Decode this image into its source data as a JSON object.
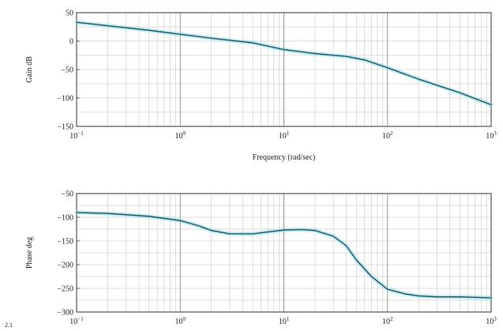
{
  "chart_data": [
    {
      "type": "line",
      "xscale": "log",
      "xlim": [
        0.1,
        1000
      ],
      "ylim": [
        -150,
        50
      ],
      "yticks": [
        50,
        0,
        -50,
        -100,
        -150
      ],
      "xticks": [
        0.1,
        1,
        10,
        100,
        1000
      ],
      "xtick_labels": [
        {
          "base": "10",
          "exp": "−1"
        },
        {
          "base": "10",
          "exp": "0"
        },
        {
          "base": "10",
          "exp": "1"
        },
        {
          "base": "10",
          "exp": "2"
        },
        {
          "base": "10",
          "exp": "3"
        }
      ],
      "ytick_labels": [
        "50",
        "0",
        "−50",
        "−100",
        "−150"
      ],
      "ylabel": "Gain dB",
      "xlabel": "Frequency (rad/sec)",
      "grid": true,
      "colors": {
        "band": "#7fd3e6",
        "line": "#1f4e5c"
      },
      "series": [
        {
          "x": [
            0.1,
            0.2,
            0.5,
            1,
            2,
            5,
            10,
            20,
            30,
            40,
            60,
            100,
            200,
            500,
            1000
          ],
          "y": [
            33,
            27,
            19,
            12,
            5,
            -3,
            -15,
            -22,
            -25,
            -27,
            -33,
            -47,
            -67,
            -91,
            -112
          ]
        }
      ]
    },
    {
      "type": "line",
      "xscale": "log",
      "xlim": [
        0.1,
        1000
      ],
      "ylim": [
        -300,
        -50
      ],
      "yticks": [
        -50,
        -100,
        -150,
        -200,
        -250,
        -300
      ],
      "xticks": [
        0.1,
        1,
        10,
        100,
        1000
      ],
      "xtick_labels": [
        {
          "base": "10",
          "exp": "−1"
        },
        {
          "base": "10",
          "exp": "0"
        },
        {
          "base": "10",
          "exp": "1"
        },
        {
          "base": "10",
          "exp": "2"
        },
        {
          "base": "10",
          "exp": "3"
        }
      ],
      "ytick_labels": [
        "−50",
        "−100",
        "−150",
        "−200",
        "−250",
        "−300"
      ],
      "ylabel": "Phase deg",
      "xlabel": "",
      "grid": true,
      "colors": {
        "band": "#7fd3e6",
        "line": "#1f4e5c"
      },
      "series": [
        {
          "x": [
            0.1,
            0.2,
            0.5,
            1,
            1.5,
            2,
            3,
            5,
            7,
            10,
            15,
            20,
            30,
            40,
            50,
            70,
            100,
            150,
            200,
            300,
            500,
            1000
          ],
          "y": [
            -90,
            -92,
            -98,
            -107,
            -118,
            -128,
            -135,
            -135,
            -131,
            -127,
            -126,
            -128,
            -140,
            -160,
            -190,
            -225,
            -252,
            -262,
            -266,
            -268,
            -268,
            -270
          ]
        }
      ]
    }
  ],
  "figure": {
    "corner_label": "2.1"
  }
}
